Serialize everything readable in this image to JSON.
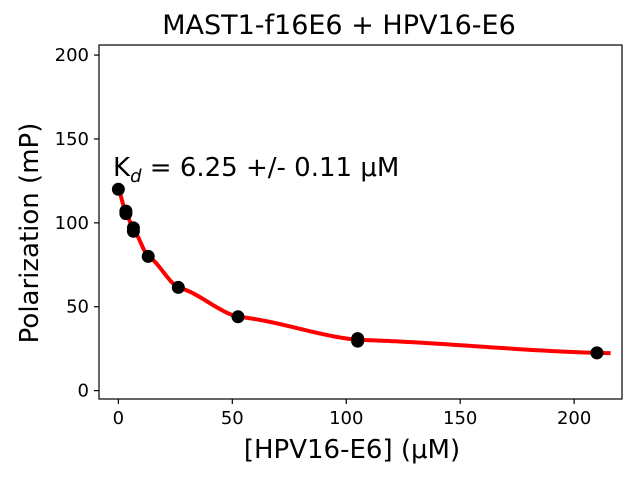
{
  "chart_data": {
    "type": "scatter",
    "title": "MAST1-f16E6 + HPV16-E6",
    "xlabel": "[HPV16-E6] (μM)",
    "ylabel": "Polarization (mP)",
    "xlim": [
      -8.5,
      221
    ],
    "ylim": [
      -5,
      206
    ],
    "x_ticks": [
      0,
      50,
      100,
      150,
      200
    ],
    "y_ticks": [
      0,
      50,
      100,
      150,
      200
    ],
    "annotation": {
      "prefix": "K",
      "subscript": "d",
      "text": " = 6.25 +/- 0.11 μM"
    },
    "fit_color": "#ff0000",
    "point_color": "#000000",
    "fit": {
      "x_range": [
        0,
        216
      ]
    },
    "series": [
      {
        "points": [
          {
            "x": 0,
            "y": 120
          },
          {
            "x": 3.3,
            "y": 107
          },
          {
            "x": 3.3,
            "y": 105.5
          },
          {
            "x": 6.6,
            "y": 97
          },
          {
            "x": 6.6,
            "y": 95
          },
          {
            "x": 13.1,
            "y": 80
          },
          {
            "x": 26.3,
            "y": 61.5
          },
          {
            "x": 52.5,
            "y": 44
          },
          {
            "x": 105,
            "y": 31
          },
          {
            "x": 105,
            "y": 29.5
          },
          {
            "x": 210,
            "y": 22.5
          }
        ]
      }
    ],
    "grid": false,
    "legend": "none"
  }
}
